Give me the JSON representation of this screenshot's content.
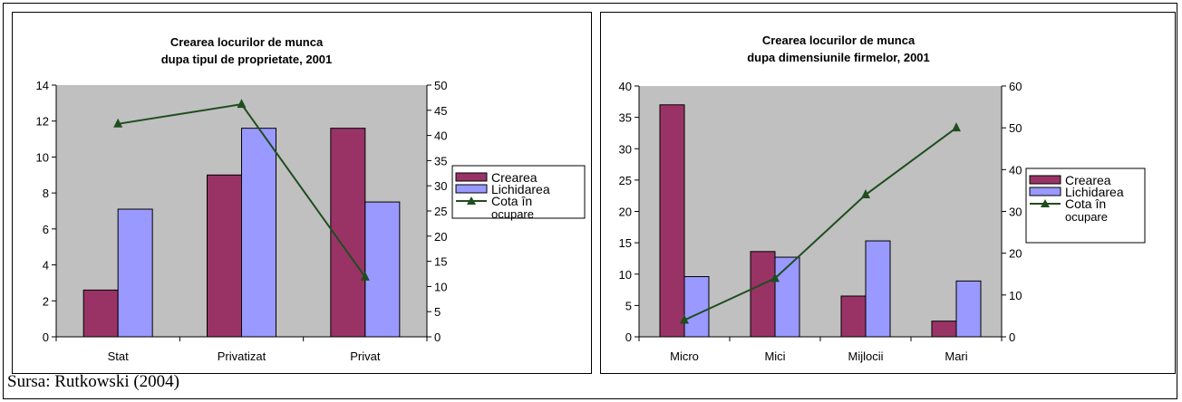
{
  "source": "Sursa: Rutkowski (2004)",
  "chart_data": [
    {
      "type": "bar",
      "title": [
        "Crearea locurilor de munca",
        "dupa tipul de proprietate, 2001"
      ],
      "categories": [
        "Stat",
        "Privatizat",
        "Privat"
      ],
      "y_left": {
        "ylim": [
          0,
          14
        ],
        "ticks": [
          "0",
          "2",
          "4",
          "6",
          "8",
          "10",
          "12",
          "14"
        ]
      },
      "y_right": {
        "ylim": [
          0,
          50
        ],
        "ticks": [
          "0",
          "5",
          "10",
          "15",
          "20",
          "25",
          "30",
          "35",
          "40",
          "45",
          "50"
        ]
      },
      "series": [
        {
          "name": "Crearea",
          "kind": "bar",
          "axis": "left",
          "color": "#993366",
          "values": [
            2.6,
            9.0,
            11.6
          ]
        },
        {
          "name": "Lichidarea",
          "kind": "bar",
          "axis": "left",
          "color": "#9999ff",
          "values": [
            7.1,
            11.6,
            7.5
          ]
        },
        {
          "name": "Cota în ocupare",
          "kind": "line",
          "axis": "right",
          "color": "#1f4d1f",
          "values": [
            42.3,
            46.2,
            11.9
          ]
        }
      ],
      "legend_position": "right",
      "plot_background": "#c0c0c0"
    },
    {
      "type": "bar",
      "title": [
        "Crearea locurilor de munca",
        "dupa dimensiunile firmelor, 2001"
      ],
      "categories": [
        "Micro",
        "Mici",
        "Mijlocii",
        "Mari"
      ],
      "y_left": {
        "ylim": [
          0,
          40
        ],
        "ticks": [
          "0",
          "5",
          "10",
          "15",
          "20",
          "25",
          "30",
          "35",
          "40"
        ]
      },
      "y_right": {
        "ylim": [
          0,
          60
        ],
        "ticks": [
          "0",
          "10",
          "20",
          "30",
          "40",
          "50",
          "60"
        ]
      },
      "series": [
        {
          "name": "Crearea",
          "kind": "bar",
          "axis": "left",
          "color": "#993366",
          "values": [
            37,
            13.6,
            6.5,
            2.5
          ]
        },
        {
          "name": "Lichidarea",
          "kind": "bar",
          "axis": "left",
          "color": "#9999ff",
          "values": [
            9.6,
            12.7,
            15.3,
            8.9
          ]
        },
        {
          "name": "Cota în ocupare",
          "kind": "line",
          "axis": "right",
          "color": "#1f4d1f",
          "values": [
            4,
            14,
            34,
            50
          ]
        }
      ],
      "legend_position": "right",
      "plot_background": "#c0c0c0"
    }
  ]
}
